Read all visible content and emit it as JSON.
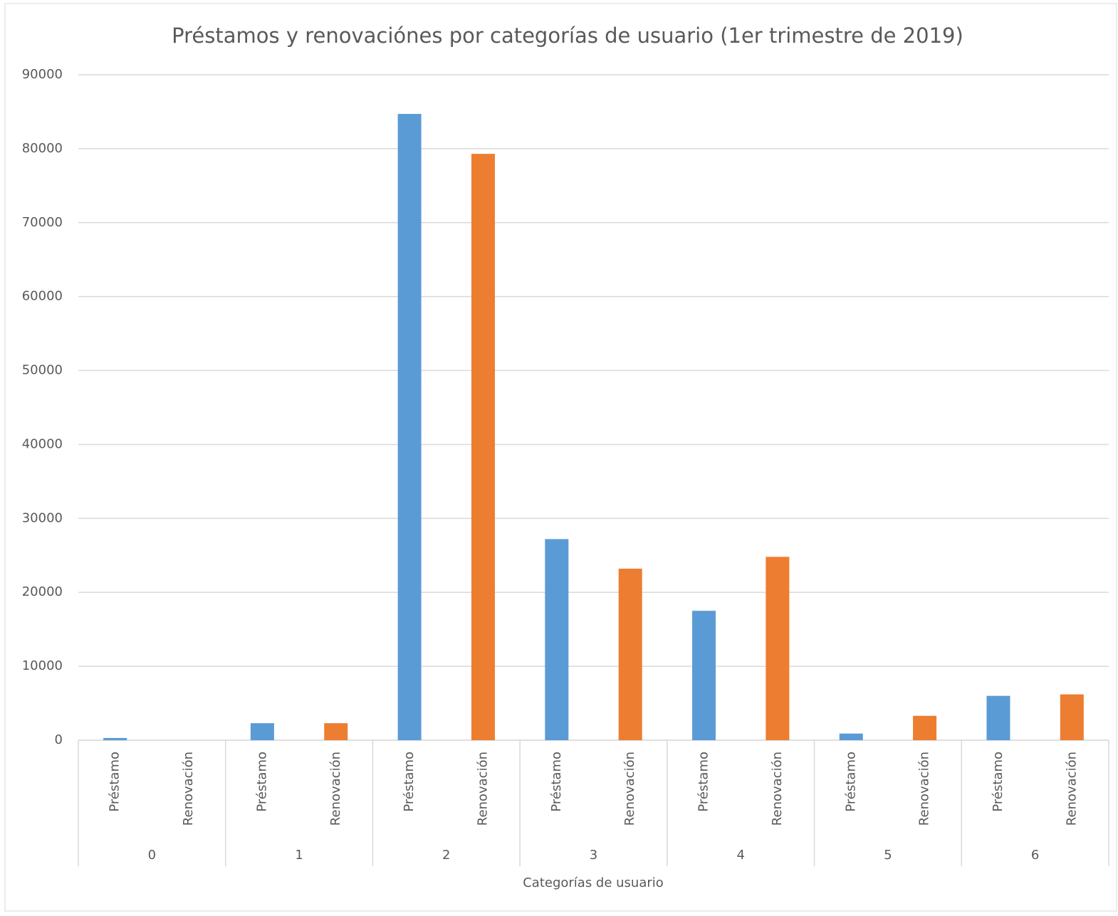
{
  "chart_data": {
    "type": "grouped-bar",
    "title": "Préstamos y renovaciónes por categorías de usuario (1er trimestre de 2019)",
    "x_label": "Categorías de usuario",
    "categories": [
      "0",
      "1",
      "2",
      "3",
      "4",
      "5",
      "6"
    ],
    "subcategories": [
      "Préstamo",
      "Renovación"
    ],
    "series": [
      {
        "color": "#5b9bd5",
        "values": [
          300,
          2300,
          84700,
          27200,
          17500,
          900,
          6000
        ]
      },
      {
        "color": "#ed7d31",
        "values": [
          0,
          2300,
          79300,
          23200,
          24800,
          3300,
          6200
        ]
      }
    ],
    "ylim": [
      0,
      90000
    ],
    "yticks": [
      0,
      10000,
      20000,
      30000,
      40000,
      50000,
      60000,
      70000,
      80000,
      90000
    ],
    "grid": true
  }
}
